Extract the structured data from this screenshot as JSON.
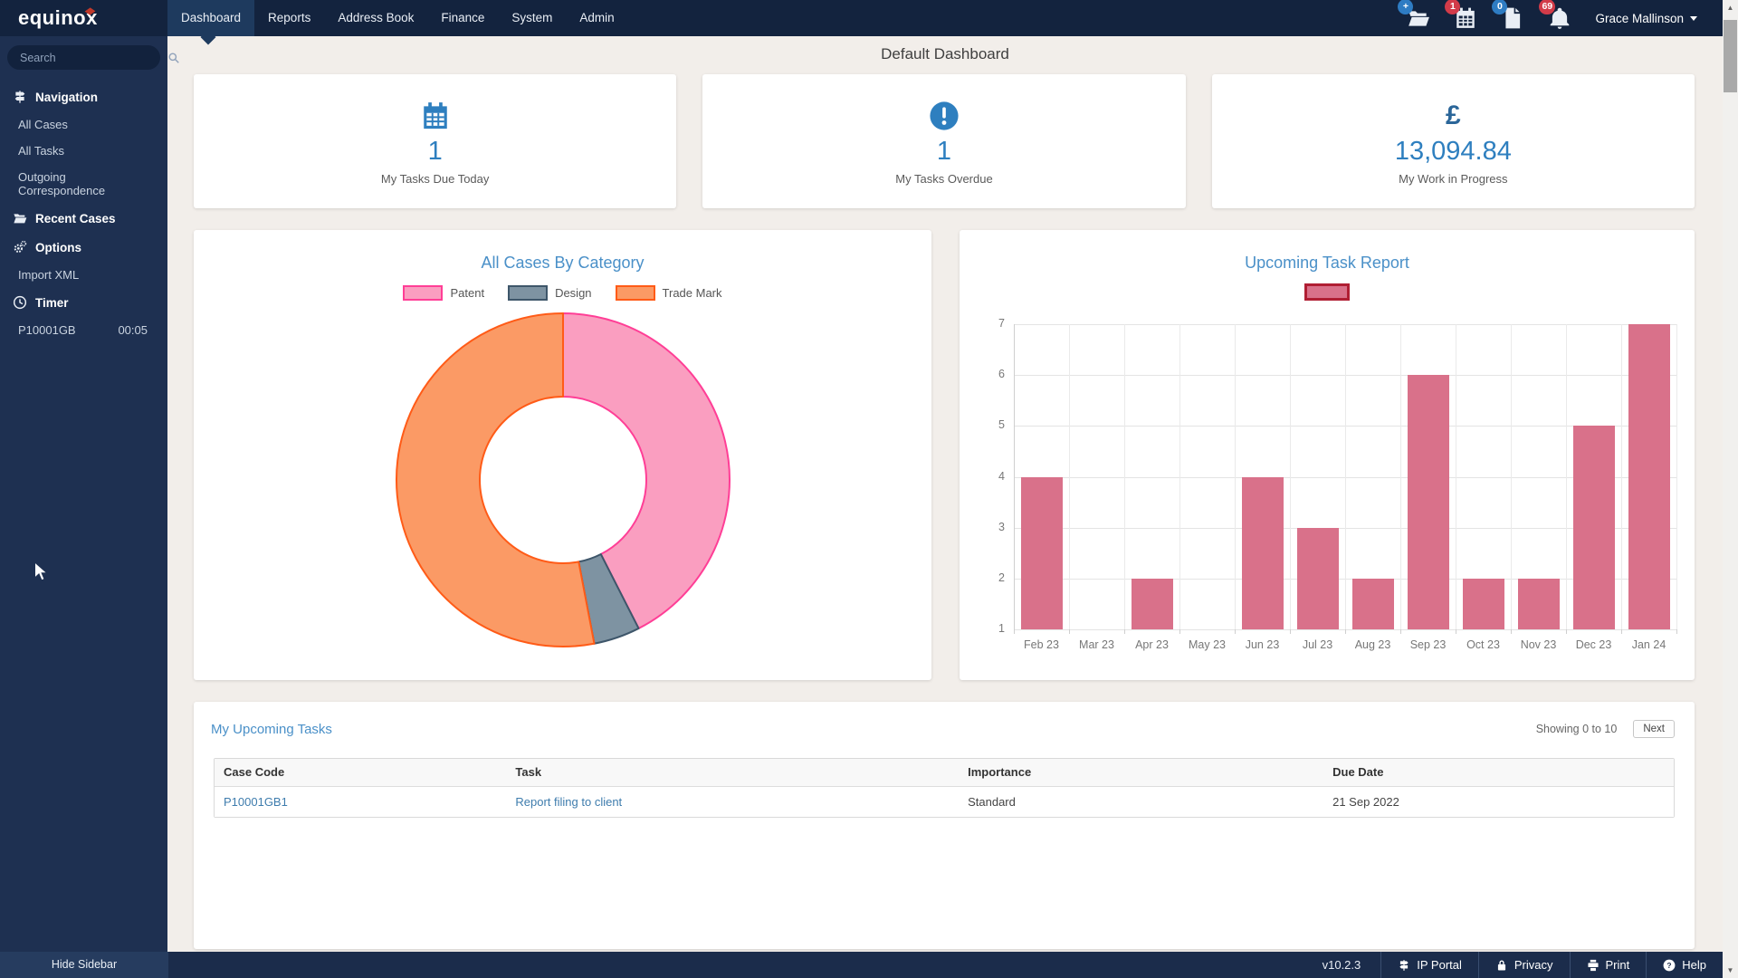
{
  "topnav": {
    "logo": "equinox",
    "tabs": [
      {
        "label": "Dashboard",
        "active": true
      },
      {
        "label": "Reports",
        "active": false
      },
      {
        "label": "Address Book",
        "active": false
      },
      {
        "label": "Finance",
        "active": false
      },
      {
        "label": "System",
        "active": false
      },
      {
        "label": "Admin",
        "active": false
      }
    ],
    "status_icons": [
      {
        "name": "new-case-folder-icon",
        "glyph": "folder",
        "badge": "+",
        "badge_color": "#2E7CC3"
      },
      {
        "name": "calendar-tasks-icon",
        "glyph": "calendar",
        "badge": "1",
        "badge_color": "#D23B49"
      },
      {
        "name": "documents-icon",
        "glyph": "file",
        "badge": "0",
        "badge_color": "#2E7CC3"
      },
      {
        "name": "notifications-bell-icon",
        "glyph": "bell",
        "badge": "69",
        "badge_color": "#D23B49"
      }
    ],
    "user": {
      "name": "Grace Mallinson"
    }
  },
  "sidebar": {
    "search_placeholder": "Search",
    "sections": [
      {
        "label": "Navigation",
        "icon": "signpost-icon",
        "items": [
          "All Cases",
          "All Tasks",
          "Outgoing Correspondence"
        ]
      },
      {
        "label": "Recent Cases",
        "icon": "folder-icon",
        "items": []
      },
      {
        "label": "Options",
        "icon": "gears-icon",
        "items": [
          "Import XML"
        ]
      },
      {
        "label": "Timer",
        "icon": "clock-icon",
        "items": []
      }
    ],
    "timer": {
      "case_code": "P10001GB",
      "elapsed": "00:05"
    },
    "hide_sidebar_label": "Hide Sidebar"
  },
  "page": {
    "title": "Default Dashboard"
  },
  "cards": [
    {
      "icon": "calendar-icon",
      "value": "1",
      "label": "My Tasks Due Today"
    },
    {
      "icon": "alert-icon",
      "value": "1",
      "label": "My Tasks Overdue"
    },
    {
      "icon": "pound-icon",
      "value": "13,094.84",
      "label": "My Work in Progress"
    }
  ],
  "chart_data": [
    {
      "type": "pie",
      "donut": true,
      "title": "All Cases By Category",
      "labels": [
        "Patent",
        "Design",
        "Trade Mark"
      ],
      "values_percent": [
        42.5,
        4.5,
        53
      ],
      "start_angle_deg": 0,
      "direction": "clockwise",
      "legend_position": "top",
      "colors": [
        {
          "fill": "#FA9EC0",
          "stroke": "#FF3E96"
        },
        {
          "fill": "#7E93A2",
          "stroke": "#3E566A"
        },
        {
          "fill": "#FB9A65",
          "stroke": "#FF5B17"
        }
      ]
    },
    {
      "type": "bar",
      "title": "Upcoming Task Report",
      "categories": [
        "Feb 23",
        "Mar 23",
        "Apr 23",
        "May 23",
        "Jun 23",
        "Jul 23",
        "Aug 23",
        "Sep 23",
        "Oct 23",
        "Nov 23",
        "Dec 23",
        "Jan 24"
      ],
      "values": [
        4,
        0,
        2,
        0,
        4,
        3,
        2,
        6,
        2,
        2,
        5,
        7
      ],
      "xlabel": "",
      "ylabel": "",
      "ylim": [
        1,
        7
      ],
      "yticks": [
        1,
        2,
        3,
        4,
        5,
        6,
        7
      ],
      "grid": true,
      "bar_color": "#D9718A",
      "legend_position": "top",
      "legend_swatch": {
        "label": "",
        "fill": "#D9718A",
        "stroke": "#B01E33"
      }
    }
  ],
  "tasks_panel": {
    "title": "My Upcoming Tasks",
    "paging": {
      "status": "Showing 0 to 10",
      "next_label": "Next"
    },
    "table": {
      "columns": [
        "Case Code",
        "Task",
        "Importance",
        "Due Date"
      ],
      "rows": [
        {
          "case_code": "P10001GB1",
          "task": "Report filing to client",
          "importance": "Standard",
          "due_date": "21 Sep 2022"
        }
      ]
    }
  },
  "footer": {
    "version": "v10.2.3",
    "links": [
      {
        "label": "IP Portal",
        "icon": "signpost-icon"
      },
      {
        "label": "Privacy",
        "icon": "lock-icon"
      },
      {
        "label": "Print",
        "icon": "printer-icon"
      },
      {
        "label": "Help",
        "icon": "help-icon"
      }
    ]
  },
  "colors": {
    "navbar": "#13233E",
    "active_tab": "#1E3A5E",
    "sidebar": "#1E3051",
    "footer": "#1B2C4B",
    "page_bg": "#F2EEEA",
    "accent_blue": "#2E7FBF",
    "title_blue": "#4A90C8",
    "link_blue": "#3E7CAD",
    "bar_rose": "#D9718A"
  }
}
